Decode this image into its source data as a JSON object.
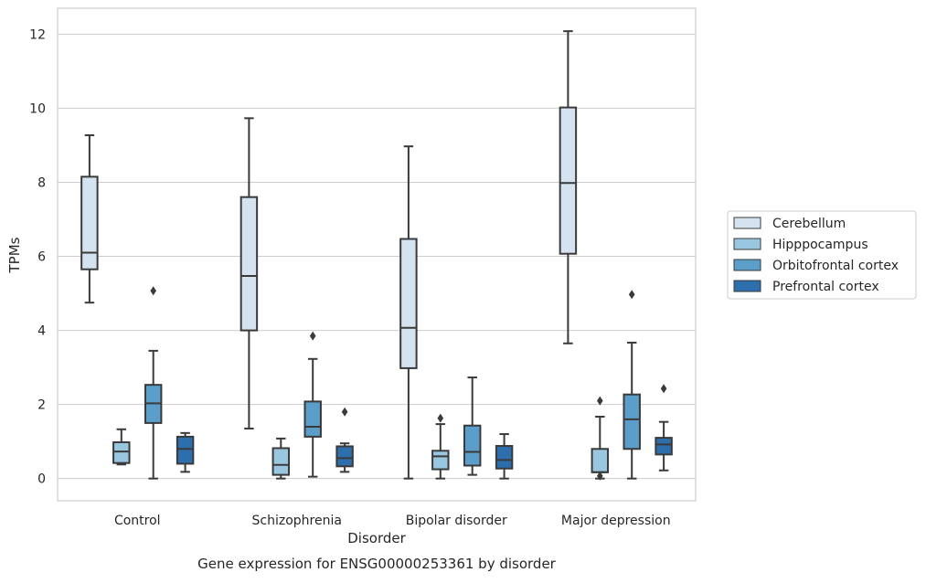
{
  "chart_data": {
    "type": "box",
    "xlabel": "Disorder",
    "ylabel": "TPMs",
    "caption": "Gene expression for ENSG00000253361 by disorder",
    "ylim": [
      -0.6,
      12.7
    ],
    "yticks": [
      0,
      2,
      4,
      6,
      8,
      10,
      12
    ],
    "grid": true,
    "legend_position": "right",
    "categories": [
      "Control",
      "Schizophrenia",
      "Bipolar disorder",
      "Major depression"
    ],
    "series": [
      {
        "name": "Cerebellum",
        "color": "#d5e3f1",
        "boxes": [
          {
            "whisker_low": 4.75,
            "q1": 5.65,
            "median": 6.1,
            "q3": 8.15,
            "whisker_high": 9.27,
            "outliers": []
          },
          {
            "whisker_low": 1.35,
            "q1": 4.0,
            "median": 5.47,
            "q3": 7.6,
            "whisker_high": 9.73,
            "outliers": []
          },
          {
            "whisker_low": 0.0,
            "q1": 2.98,
            "median": 4.07,
            "q3": 6.47,
            "whisker_high": 8.97,
            "outliers": []
          },
          {
            "whisker_low": 3.65,
            "q1": 6.07,
            "median": 7.98,
            "q3": 10.02,
            "whisker_high": 12.08,
            "outliers": []
          }
        ]
      },
      {
        "name": "Hipppocampus",
        "color": "#9ac7e0",
        "boxes": [
          {
            "whisker_low": 0.38,
            "q1": 0.42,
            "median": 0.73,
            "q3": 0.98,
            "whisker_high": 1.33,
            "outliers": []
          },
          {
            "whisker_low": 0.0,
            "q1": 0.1,
            "median": 0.37,
            "q3": 0.82,
            "whisker_high": 1.08,
            "outliers": []
          },
          {
            "whisker_low": 0.0,
            "q1": 0.25,
            "median": 0.6,
            "q3": 0.75,
            "whisker_high": 1.47,
            "outliers": [
              1.63
            ]
          },
          {
            "whisker_low": 0.0,
            "q1": 0.17,
            "median": 0.17,
            "q3": 0.8,
            "whisker_high": 1.67,
            "outliers": [
              0.07,
              2.1
            ]
          }
        ]
      },
      {
        "name": "Orbitofrontal cortex",
        "color": "#5a9ec9",
        "boxes": [
          {
            "whisker_low": 0.0,
            "q1": 1.5,
            "median": 2.03,
            "q3": 2.53,
            "whisker_high": 3.45,
            "outliers": [
              5.07
            ]
          },
          {
            "whisker_low": 0.05,
            "q1": 1.13,
            "median": 1.4,
            "q3": 2.08,
            "whisker_high": 3.23,
            "outliers": [
              3.85
            ]
          },
          {
            "whisker_low": 0.1,
            "q1": 0.35,
            "median": 0.72,
            "q3": 1.43,
            "whisker_high": 2.73,
            "outliers": []
          },
          {
            "whisker_low": 0.0,
            "q1": 0.8,
            "median": 1.6,
            "q3": 2.27,
            "whisker_high": 3.67,
            "outliers": [
              4.97
            ]
          }
        ]
      },
      {
        "name": "Prefrontal cortex",
        "color": "#2d6eac",
        "boxes": [
          {
            "whisker_low": 0.18,
            "q1": 0.4,
            "median": 0.8,
            "q3": 1.13,
            "whisker_high": 1.23,
            "outliers": []
          },
          {
            "whisker_low": 0.18,
            "q1": 0.33,
            "median": 0.55,
            "q3": 0.87,
            "whisker_high": 0.95,
            "outliers": [
              1.8
            ]
          },
          {
            "whisker_low": 0.0,
            "q1": 0.27,
            "median": 0.5,
            "q3": 0.88,
            "whisker_high": 1.2,
            "outliers": []
          },
          {
            "whisker_low": 0.22,
            "q1": 0.65,
            "median": 0.92,
            "q3": 1.1,
            "whisker_high": 1.53,
            "outliers": [
              2.43
            ]
          }
        ]
      }
    ]
  }
}
